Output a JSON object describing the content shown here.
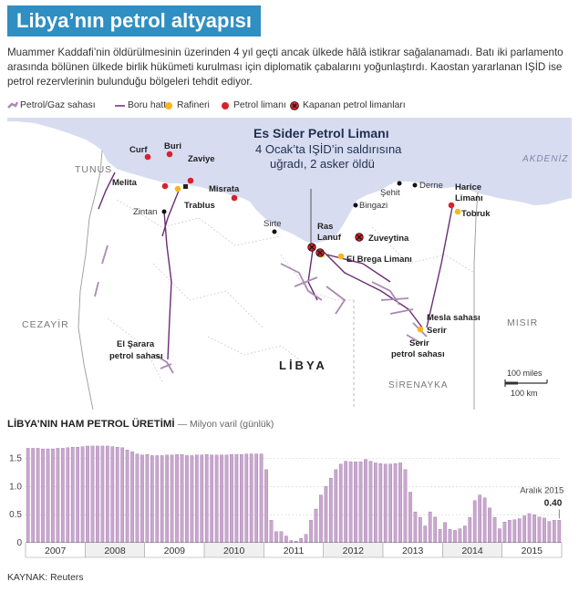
{
  "title": "Libya’nın petrol altyapısı",
  "intro": "Muammer Kaddafi’nin öldürülmesinin üzerinden 4 yıl geçti ancak ülkede hâlâ istikrar sağalanamadı. Batı iki parlamento arasında bölünen ülkede birlik hükümeti kurulması için diplomatik çabalarını yoğunlaştırdı. Kaostan yararlanan IŞİD ise petrol rezervlerinin bulunduğu bölgeleri tehdit ediyor.",
  "legend": {
    "field": "Petrol/Gaz sahası",
    "pipeline": "Boru hattı",
    "refinery": "Rafineri",
    "port": "Petrol limanı",
    "closed_port": "Kapanan petrol limanları"
  },
  "colors": {
    "title_bg": "#2f8fc2",
    "sea": "#d8dcf0",
    "land": "#ffffff",
    "pipeline": "#6b2c74",
    "field": "#a98ab0",
    "refinery": "#f5b81c",
    "port": "#d8222b",
    "bar": "#c9a7cf",
    "bar_edge": "#8d6396"
  },
  "map": {
    "country": "LİBYA",
    "sea": "AKDENİZ",
    "neighbors": [
      "TUNUS",
      "CEZAYİR",
      "MISIR",
      "SİRENAYKA"
    ],
    "callout_title": "Es Sider Petrol Limanı",
    "callout_text": [
      "4 Ocak’ta IŞİD’in saldırısına",
      "uğradı, 2 asker öldü"
    ],
    "cities": [
      "Zintan",
      "Sirte",
      "Bingazi",
      "Şehit",
      "Derne"
    ],
    "ports": [
      "Curf",
      "Buri",
      "Zaviye",
      "Melita",
      "Misrata",
      "Harice Limanı"
    ],
    "refinery_ports": [
      "Trablus",
      "Tobruk"
    ],
    "closed_ports": [
      "Ras Lanuf",
      "Zuveytina"
    ],
    "other_ports": [
      "El Brega Limanı"
    ],
    "fields": [
      "El Şarara petrol sahası",
      "Mesla sahası",
      "Serir",
      "Serir petrol sahası"
    ],
    "scale": {
      "miles": "100 miles",
      "km": "100 km"
    }
  },
  "chart_title": "LİBYA’NIN HAM PETROL ÜRETİMİ",
  "chart_subtitle": "— Milyon varil (günlük)",
  "chart_data": {
    "type": "bar",
    "unit": "Milyon varil (günlük)",
    "y_ticks": [
      "0",
      "0.5",
      "1.0",
      "1.5"
    ],
    "ylim": [
      0,
      1.8
    ],
    "years": [
      "2007",
      "2008",
      "2009",
      "2010",
      "2011",
      "2012",
      "2013",
      "2014",
      "2015"
    ],
    "values": [
      1.68,
      1.68,
      1.68,
      1.67,
      1.67,
      1.67,
      1.68,
      1.68,
      1.69,
      1.7,
      1.7,
      1.71,
      1.72,
      1.72,
      1.72,
      1.72,
      1.72,
      1.71,
      1.7,
      1.69,
      1.65,
      1.62,
      1.58,
      1.56,
      1.57,
      1.55,
      1.55,
      1.55,
      1.56,
      1.56,
      1.57,
      1.57,
      1.55,
      1.55,
      1.56,
      1.56,
      1.57,
      1.56,
      1.56,
      1.56,
      1.56,
      1.57,
      1.57,
      1.57,
      1.58,
      1.58,
      1.58,
      1.58,
      1.3,
      0.4,
      0.2,
      0.2,
      0.12,
      0.04,
      0.03,
      0.08,
      0.15,
      0.4,
      0.6,
      0.85,
      1.0,
      1.15,
      1.3,
      1.4,
      1.45,
      1.44,
      1.44,
      1.44,
      1.48,
      1.45,
      1.42,
      1.41,
      1.4,
      1.4,
      1.41,
      1.42,
      1.3,
      0.9,
      0.55,
      0.45,
      0.3,
      0.55,
      0.46,
      0.24,
      0.36,
      0.24,
      0.22,
      0.25,
      0.3,
      0.45,
      0.75,
      0.85,
      0.8,
      0.62,
      0.45,
      0.25,
      0.37,
      0.4,
      0.41,
      0.43,
      0.48,
      0.52,
      0.5,
      0.46,
      0.44,
      0.38,
      0.4,
      0.4
    ],
    "annotation": {
      "label": "Aralık 2015",
      "value": "0.40"
    }
  },
  "source": "KAYNAK: Reuters"
}
